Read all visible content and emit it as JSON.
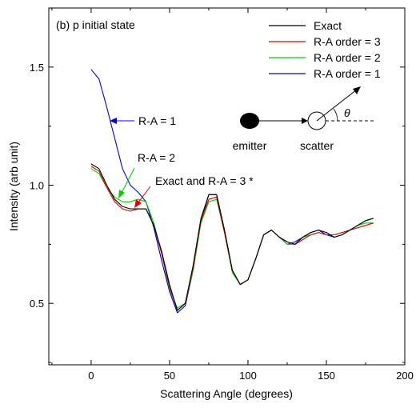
{
  "chart_data": {
    "type": "line",
    "panel_label": "(b) p initial state",
    "xlabel": "Scattering Angle (degrees)",
    "ylabel": "Intensity (arb unit)",
    "xlim": [
      -27,
      200
    ],
    "ylim": [
      0.24,
      1.75
    ],
    "xticks": [
      0,
      50,
      100,
      150,
      200
    ],
    "xtick_labels": [
      "0",
      "50",
      "100",
      "150",
      "200"
    ],
    "yticks": [
      0.5,
      1.0,
      1.5
    ],
    "ytick_labels": [
      "0.5",
      "1.0",
      "1.5"
    ],
    "legend_position": "top-right",
    "series": [
      {
        "name": "Exact",
        "color": "#000000",
        "x": [
          0,
          5,
          10,
          15,
          20,
          25,
          30,
          35,
          40,
          45,
          50,
          55,
          60,
          65,
          70,
          75,
          80,
          85,
          90,
          95,
          100,
          105,
          110,
          115,
          120,
          125,
          130,
          135,
          140,
          145,
          150,
          155,
          160,
          165,
          170,
          175,
          180
        ],
        "y": [
          1.09,
          1.07,
          1.0,
          0.94,
          0.91,
          0.9,
          0.9,
          0.9,
          0.83,
          0.72,
          0.58,
          0.47,
          0.5,
          0.66,
          0.86,
          0.96,
          0.96,
          0.81,
          0.64,
          0.58,
          0.6,
          0.69,
          0.79,
          0.81,
          0.78,
          0.76,
          0.75,
          0.78,
          0.8,
          0.81,
          0.8,
          0.78,
          0.79,
          0.81,
          0.83,
          0.85,
          0.86
        ]
      },
      {
        "name": "R-A order = 3",
        "color": "#e00000",
        "x": [
          0,
          5,
          10,
          15,
          20,
          25,
          30,
          35,
          40,
          45,
          50,
          55,
          60,
          65,
          70,
          75,
          80,
          85,
          90,
          95,
          100,
          105,
          110,
          115,
          120,
          125,
          130,
          135,
          140,
          145,
          150,
          155,
          160,
          165,
          170,
          175,
          180
        ],
        "y": [
          1.08,
          1.06,
          0.99,
          0.93,
          0.9,
          0.89,
          0.9,
          0.9,
          0.83,
          0.71,
          0.57,
          0.47,
          0.5,
          0.65,
          0.85,
          0.94,
          0.95,
          0.8,
          0.64,
          0.58,
          0.6,
          0.69,
          0.79,
          0.81,
          0.78,
          0.76,
          0.75,
          0.77,
          0.79,
          0.8,
          0.79,
          0.79,
          0.8,
          0.81,
          0.82,
          0.83,
          0.84
        ]
      },
      {
        "name": "R-A order = 2",
        "color": "#00cc00",
        "x": [
          0,
          5,
          10,
          15,
          20,
          25,
          30,
          35,
          40,
          45,
          50,
          55,
          60,
          65,
          70,
          75,
          80,
          85,
          90,
          95,
          100,
          105,
          110,
          115,
          120,
          125,
          130,
          135,
          140,
          145,
          150,
          155,
          160,
          165,
          170,
          175,
          180
        ],
        "y": [
          1.07,
          1.05,
          0.99,
          0.95,
          0.93,
          0.93,
          0.94,
          0.93,
          0.84,
          0.71,
          0.56,
          0.48,
          0.5,
          0.64,
          0.84,
          0.93,
          0.94,
          0.8,
          0.63,
          0.58,
          0.6,
          0.69,
          0.79,
          0.81,
          0.78,
          0.75,
          0.75,
          0.78,
          0.79,
          0.8,
          0.79,
          0.79,
          0.8,
          0.81,
          0.83,
          0.84,
          0.84
        ]
      },
      {
        "name": "R-A order = 1",
        "color": "#0000cc",
        "x": [
          0,
          5,
          10,
          15,
          20,
          25,
          30,
          35,
          40,
          45,
          50,
          55,
          60,
          65,
          70,
          75,
          80,
          85,
          90,
          95,
          100,
          105,
          110,
          115,
          120,
          125,
          130,
          135,
          140,
          145,
          150,
          155,
          160,
          165,
          170,
          175,
          180
        ],
        "y": [
          1.49,
          1.45,
          1.33,
          1.2,
          1.07,
          1.0,
          0.97,
          0.93,
          0.82,
          0.68,
          0.55,
          0.46,
          0.49,
          0.64,
          0.85,
          0.96,
          0.96,
          0.81,
          0.64,
          0.58,
          0.6,
          0.69,
          0.79,
          0.81,
          0.78,
          0.75,
          0.76,
          0.78,
          0.8,
          0.81,
          0.79,
          0.78,
          0.79,
          0.81,
          0.83,
          0.85,
          0.86
        ]
      }
    ],
    "annotations": {
      "ra1": {
        "text": "R-A = 1",
        "color": "#0000cc"
      },
      "ra2": {
        "text": "R-A = 2",
        "color": "#00cc00"
      },
      "ra3": {
        "text": "Exact and R-A = 3 *",
        "color": "#e00000"
      }
    },
    "inset": {
      "emitter_label": "emitter",
      "scatter_label": "scatter",
      "angle_label": "θ"
    }
  }
}
